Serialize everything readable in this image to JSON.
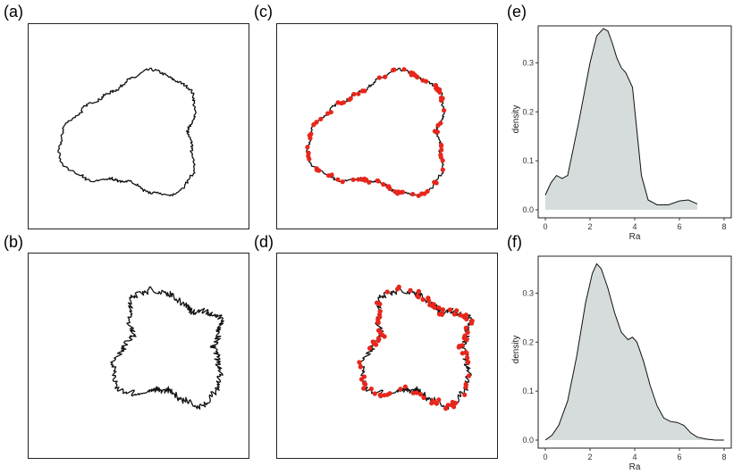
{
  "panels": {
    "a": {
      "label": "(a)"
    },
    "b": {
      "label": "(b)"
    },
    "c": {
      "label": "(c)"
    },
    "d": {
      "label": "(d)"
    },
    "e": {
      "label": "(e)"
    },
    "f": {
      "label": "(f)"
    }
  },
  "colors": {
    "outline": "#111111",
    "points": "#e8261b",
    "density_fill": "#d6dcdc",
    "density_line": "#111111"
  },
  "chart_data": [
    {
      "id": "e",
      "type": "area",
      "title": "",
      "xlabel": "Ra",
      "ylabel": "density",
      "xlim": [
        0,
        8
      ],
      "ylim": [
        0,
        0.37
      ],
      "x_ticks": [
        "0",
        "2",
        "4",
        "6",
        "8"
      ],
      "y_ticks": [
        "0.0",
        "0.1",
        "0.2",
        "0.3"
      ],
      "x": [
        0.0,
        0.25,
        0.5,
        0.75,
        1.0,
        1.5,
        2.0,
        2.3,
        2.6,
        2.8,
        3.0,
        3.2,
        3.4,
        3.6,
        3.9,
        4.1,
        4.3,
        4.6,
        5.0,
        5.5,
        6.0,
        6.4,
        6.8
      ],
      "y": [
        0.03,
        0.055,
        0.07,
        0.064,
        0.07,
        0.18,
        0.3,
        0.355,
        0.37,
        0.365,
        0.34,
        0.31,
        0.29,
        0.28,
        0.25,
        0.16,
        0.07,
        0.02,
        0.01,
        0.01,
        0.018,
        0.02,
        0.012
      ]
    },
    {
      "id": "f",
      "type": "area",
      "title": "",
      "xlabel": "Ra",
      "ylabel": "density",
      "xlim": [
        0,
        8
      ],
      "ylim": [
        0,
        0.37
      ],
      "x_ticks": [
        "0",
        "2",
        "4",
        "6",
        "8"
      ],
      "y_ticks": [
        "0.0",
        "0.1",
        "0.2",
        "0.3"
      ],
      "x": [
        0.0,
        0.3,
        0.6,
        1.0,
        1.4,
        1.8,
        2.1,
        2.3,
        2.5,
        2.8,
        3.1,
        3.4,
        3.7,
        3.9,
        4.1,
        4.4,
        4.7,
        5.0,
        5.3,
        5.6,
        5.9,
        6.2,
        6.5,
        6.8,
        7.2,
        7.6,
        8.0
      ],
      "y": [
        0.0,
        0.01,
        0.03,
        0.08,
        0.17,
        0.28,
        0.34,
        0.36,
        0.35,
        0.31,
        0.26,
        0.22,
        0.205,
        0.21,
        0.2,
        0.16,
        0.11,
        0.07,
        0.045,
        0.038,
        0.036,
        0.03,
        0.015,
        0.006,
        0.002,
        0.0,
        0.0
      ]
    }
  ]
}
